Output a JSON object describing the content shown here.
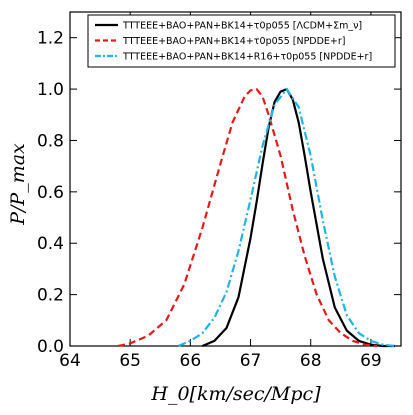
{
  "chart_data": {
    "type": "line",
    "xlabel": "H_0[km/sec/Mpc]",
    "ylabel": "P/P_max",
    "xlim": [
      64.0,
      69.5
    ],
    "ylim": [
      0.0,
      1.3
    ],
    "xticks": [
      "64",
      "65",
      "66",
      "67",
      "68",
      "69"
    ],
    "yticks": [
      "0.0",
      "0.2",
      "0.4",
      "0.6",
      "0.8",
      "1.0",
      "1.2"
    ],
    "grid": false,
    "legend_position": "top",
    "series": [
      {
        "name": "TTTEEE+BAO+PAN+BK14+τ0p055 [ΛCDM+Σm_ν]",
        "color": "#000000",
        "style": "solid",
        "x": [
          66.2,
          66.4,
          66.6,
          66.8,
          67.0,
          67.1,
          67.2,
          67.3,
          67.4,
          67.5,
          67.6,
          67.7,
          67.8,
          67.9,
          68.0,
          68.2,
          68.4,
          68.6,
          68.8,
          69.0,
          69.2,
          69.4
        ],
        "y": [
          0.0,
          0.02,
          0.07,
          0.19,
          0.42,
          0.56,
          0.71,
          0.85,
          0.95,
          0.99,
          1.0,
          0.96,
          0.87,
          0.74,
          0.6,
          0.34,
          0.15,
          0.06,
          0.02,
          0.005,
          0.0,
          0.0
        ]
      },
      {
        "name": "TTTEEE+BAO+PAN+BK14+τ0p055 [NPDDE+r]",
        "color": "#e31a1c",
        "style": "dashed",
        "x": [
          64.8,
          65.0,
          65.3,
          65.6,
          65.9,
          66.2,
          66.5,
          66.7,
          66.9,
          67.0,
          67.1,
          67.2,
          67.3,
          67.5,
          67.7,
          67.9,
          68.1,
          68.3,
          68.5,
          68.7,
          68.9,
          69.1
        ],
        "y": [
          0.0,
          0.01,
          0.04,
          0.1,
          0.24,
          0.46,
          0.71,
          0.87,
          0.97,
          0.995,
          1.0,
          0.97,
          0.9,
          0.74,
          0.53,
          0.35,
          0.2,
          0.1,
          0.05,
          0.02,
          0.005,
          0.0
        ]
      },
      {
        "name": "TTTEEE+BAO+PAN+BK14+R16+τ0p055 [NPDDE+r]",
        "color": "#1fb4e4",
        "style": "dashdot",
        "x": [
          65.8,
          66.0,
          66.2,
          66.4,
          66.6,
          66.8,
          67.0,
          67.2,
          67.4,
          67.6,
          67.8,
          68.0,
          68.2,
          68.4,
          68.6,
          68.8,
          69.0,
          69.2,
          69.4
        ],
        "y": [
          0.0,
          0.02,
          0.05,
          0.11,
          0.21,
          0.37,
          0.57,
          0.78,
          0.94,
          1.0,
          0.93,
          0.74,
          0.49,
          0.27,
          0.12,
          0.05,
          0.02,
          0.005,
          0.0
        ]
      }
    ]
  }
}
